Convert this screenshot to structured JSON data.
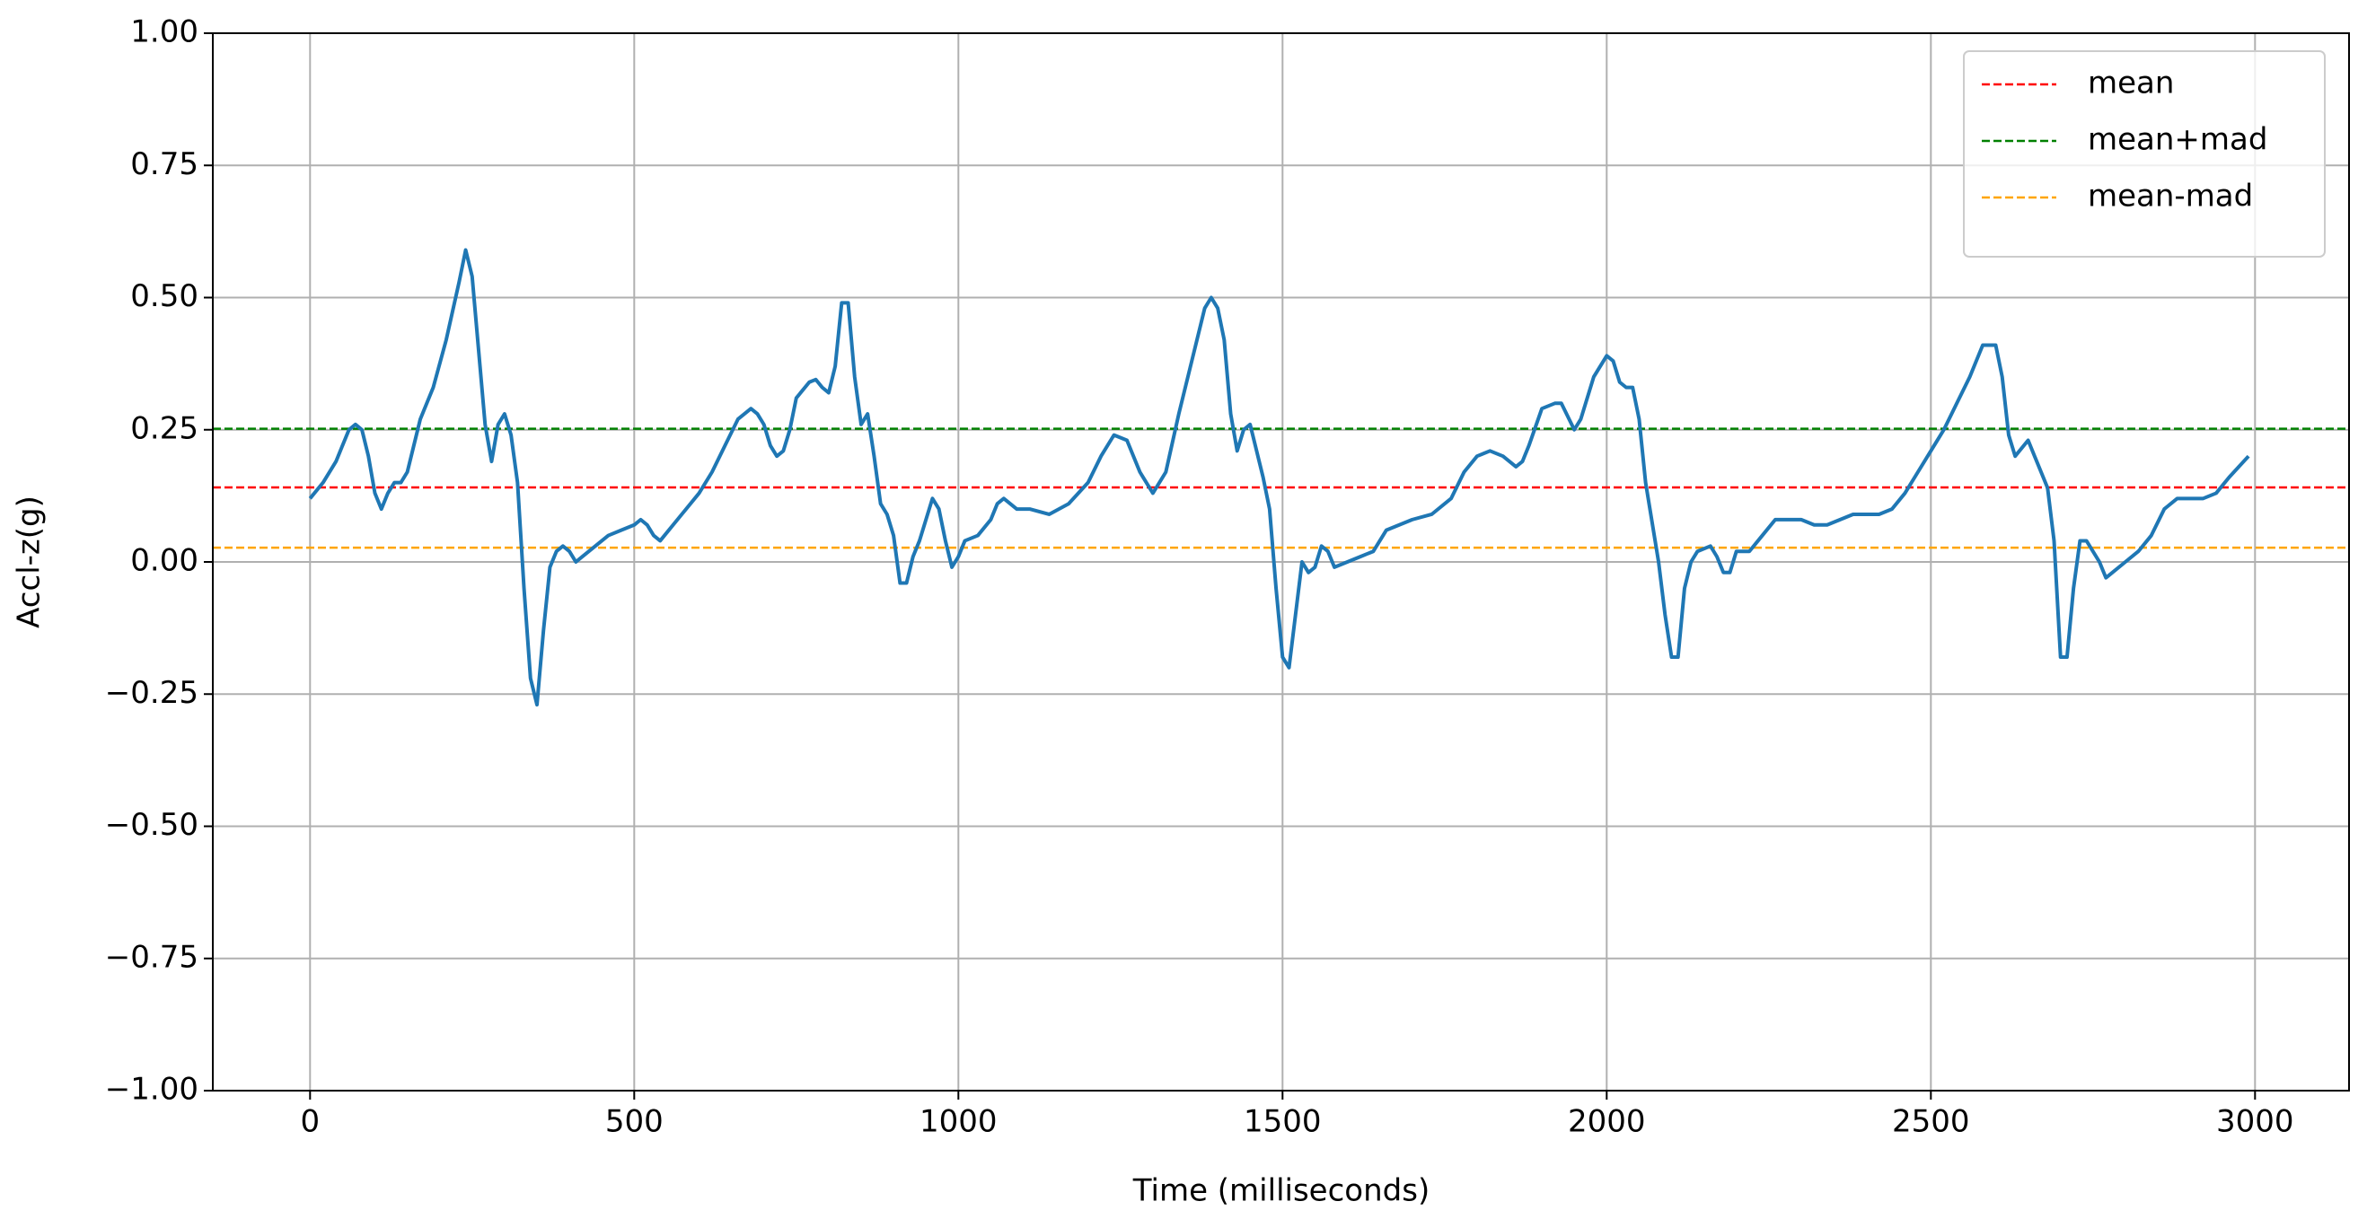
{
  "chart_data": {
    "type": "line",
    "x_label": "Time (milliseconds)",
    "y_label": "Accl-z(g)",
    "xlim": [
      -150,
      3145
    ],
    "ylim": [
      -1,
      1
    ],
    "xticks": [
      0,
      500,
      1000,
      1500,
      2000,
      2500,
      3000
    ],
    "yticks": [
      {
        "value": -1,
        "label": "−1.00"
      },
      {
        "value": -0.75,
        "label": "−0.75"
      },
      {
        "value": -0.5,
        "label": "−0.50"
      },
      {
        "value": -0.25,
        "label": "−0.25"
      },
      {
        "value": 0,
        "label": "0.00"
      },
      {
        "value": 0.25,
        "label": "0.25"
      },
      {
        "value": 0.5,
        "label": "0.50"
      },
      {
        "value": 0.75,
        "label": "0.75"
      },
      {
        "value": 1,
        "label": "1.00"
      }
    ],
    "grid": true,
    "legend": "upper right",
    "x": [
      0,
      20,
      40,
      60,
      70,
      80,
      90,
      100,
      110,
      120,
      130,
      140,
      150,
      170,
      190,
      210,
      230,
      240,
      250,
      260,
      270,
      280,
      290,
      300,
      310,
      320,
      330,
      340,
      350,
      360,
      370,
      380,
      390,
      400,
      410,
      420,
      440,
      460,
      480,
      500,
      510,
      520,
      530,
      540,
      560,
      580,
      600,
      620,
      640,
      660,
      680,
      690,
      700,
      710,
      720,
      730,
      740,
      750,
      770,
      780,
      790,
      800,
      810,
      820,
      830,
      840,
      850,
      860,
      870,
      880,
      890,
      900,
      910,
      920,
      930,
      940,
      960,
      970,
      980,
      990,
      1000,
      1010,
      1030,
      1050,
      1060,
      1070,
      1080,
      1090,
      1110,
      1140,
      1170,
      1200,
      1220,
      1240,
      1260,
      1280,
      1300,
      1320,
      1340,
      1360,
      1380,
      1390,
      1400,
      1410,
      1420,
      1430,
      1440,
      1450,
      1460,
      1470,
      1480,
      1490,
      1500,
      1510,
      1520,
      1530,
      1540,
      1550,
      1560,
      1570,
      1580,
      1600,
      1620,
      1640,
      1660,
      1680,
      1700,
      1730,
      1760,
      1780,
      1800,
      1820,
      1840,
      1860,
      1870,
      1880,
      1900,
      1920,
      1930,
      1950,
      1960,
      1980,
      2000,
      2010,
      2020,
      2030,
      2040,
      2050,
      2060,
      2080,
      2090,
      2100,
      2110,
      2120,
      2130,
      2140,
      2160,
      2170,
      2180,
      2190,
      2200,
      2220,
      2240,
      2260,
      2280,
      2300,
      2320,
      2340,
      2360,
      2380,
      2400,
      2420,
      2440,
      2460,
      2480,
      2500,
      2520,
      2540,
      2560,
      2580,
      2600,
      2610,
      2620,
      2630,
      2650,
      2660,
      2680,
      2690,
      2700,
      2710,
      2720,
      2730,
      2740,
      2760,
      2770,
      2780,
      2800,
      2820,
      2840,
      2860,
      2880,
      2900,
      2920,
      2940,
      2960,
      2990
    ],
    "series": [
      {
        "color": "#1f77b4",
        "values": [
          0.12,
          0.15,
          0.19,
          0.25,
          0.26,
          0.25,
          0.2,
          0.13,
          0.1,
          0.13,
          0.15,
          0.15,
          0.17,
          0.27,
          0.33,
          0.42,
          0.53,
          0.59,
          0.54,
          0.4,
          0.26,
          0.19,
          0.26,
          0.28,
          0.24,
          0.15,
          -0.05,
          -0.22,
          -0.27,
          -0.13,
          -0.01,
          0.02,
          0.03,
          0.02,
          0.0,
          0.01,
          0.03,
          0.05,
          0.06,
          0.07,
          0.08,
          0.07,
          0.05,
          0.04,
          0.07,
          0.1,
          0.13,
          0.17,
          0.22,
          0.27,
          0.29,
          0.28,
          0.26,
          0.22,
          0.2,
          0.21,
          0.25,
          0.31,
          0.34,
          0.345,
          0.33,
          0.32,
          0.37,
          0.49,
          0.49,
          0.35,
          0.26,
          0.28,
          0.2,
          0.11,
          0.09,
          0.05,
          -0.04,
          -0.04,
          0.01,
          0.04,
          0.12,
          0.1,
          0.04,
          -0.01,
          0.01,
          0.04,
          0.05,
          0.08,
          0.11,
          0.12,
          0.11,
          0.1,
          0.1,
          0.09,
          0.11,
          0.15,
          0.2,
          0.24,
          0.23,
          0.17,
          0.13,
          0.17,
          0.28,
          0.38,
          0.48,
          0.5,
          0.48,
          0.42,
          0.28,
          0.21,
          0.25,
          0.26,
          0.21,
          0.16,
          0.1,
          -0.05,
          -0.18,
          -0.2,
          -0.1,
          0.0,
          -0.02,
          -0.01,
          0.03,
          0.02,
          -0.01,
          0.0,
          0.01,
          0.02,
          0.06,
          0.07,
          0.08,
          0.09,
          0.12,
          0.17,
          0.2,
          0.21,
          0.2,
          0.18,
          0.19,
          0.22,
          0.29,
          0.3,
          0.3,
          0.25,
          0.27,
          0.35,
          0.39,
          0.38,
          0.34,
          0.33,
          0.33,
          0.27,
          0.15,
          0.0,
          -0.1,
          -0.18,
          -0.18,
          -0.05,
          0.0,
          0.02,
          0.03,
          0.01,
          -0.02,
          -0.02,
          0.02,
          0.02,
          0.05,
          0.08,
          0.08,
          0.08,
          0.07,
          0.07,
          0.08,
          0.09,
          0.09,
          0.09,
          0.1,
          0.13,
          0.17,
          0.21,
          0.25,
          0.3,
          0.35,
          0.41,
          0.41,
          0.35,
          0.24,
          0.2,
          0.23,
          0.2,
          0.14,
          0.04,
          -0.18,
          -0.18,
          -0.05,
          0.04,
          0.04,
          0.0,
          -0.03,
          -0.02,
          0.0,
          0.02,
          0.05,
          0.1,
          0.12,
          0.12,
          0.12,
          0.13,
          0.16,
          0.2
        ]
      }
    ],
    "hlines": [
      {
        "name": "mean",
        "color": "#ff0000",
        "value": 0.141
      },
      {
        "name": "mean+mad",
        "color": "#008000",
        "value": 0.252
      },
      {
        "name": "mean-mad",
        "color": "#ffa500",
        "value": 0.027
      }
    ]
  }
}
